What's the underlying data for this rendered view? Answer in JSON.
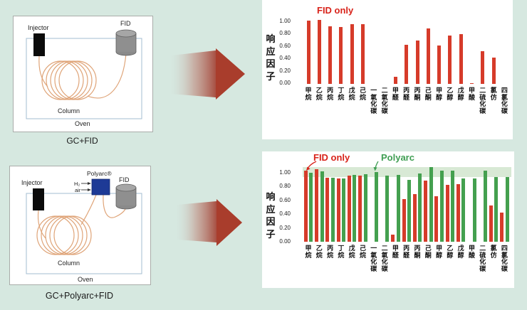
{
  "colors": {
    "background": "#d6e8e0",
    "bar_red": "#d63b2a",
    "bar_green": "#44a04f",
    "legend_red": "#d8231a",
    "legend_green": "#3f9e53",
    "flow_arrow": "#a93d2c",
    "band_green": "#d8e9d5"
  },
  "left_diagrams": [
    {
      "caption": "GC+FID",
      "labels": {
        "injector": "Injector",
        "detector": "FID",
        "column": "Column",
        "oven": "Oven"
      }
    },
    {
      "caption": "GC+Polyarc+FID",
      "labels": {
        "injector": "Injector",
        "reactor": "Polyarc®",
        "h2": "H₂",
        "air": "air",
        "detector": "FID",
        "column": "Column",
        "oven": "Oven"
      }
    }
  ],
  "chart_data": [
    {
      "type": "bar",
      "title": "FID only",
      "ylabel": "响应因子",
      "ylim": [
        0,
        1.1
      ],
      "yticks": [
        1.0,
        0.8,
        0.6,
        0.4,
        0.2,
        0.0
      ],
      "grid": false,
      "legend_position": "top-left",
      "categories": [
        "甲烷",
        "乙烷",
        "丙烷",
        "丁烷",
        "戊烷",
        "己烷",
        "一氧化碳",
        "二氧化碳",
        "甲醛",
        "丙醛",
        "丙酮",
        "己酮",
        "甲醇",
        "乙醇",
        "戊醇",
        "甲酸",
        "二硫化碳",
        "氯仿",
        "四氯化碳"
      ],
      "series": [
        {
          "name": "FID only",
          "color": "#d63b2a",
          "values": [
            1.02,
            1.04,
            0.93,
            0.92,
            0.96,
            0.96,
            0,
            0,
            0.11,
            0.63,
            0.7,
            0.9,
            0.62,
            0.78,
            0.81,
            0.01,
            0.53,
            0.42,
            0
          ]
        }
      ]
    },
    {
      "type": "bar",
      "title": "FID only vs Polyarc",
      "ylabel": "响应因子",
      "ylim": [
        0,
        1.1
      ],
      "yticks": [
        1.0,
        0.8,
        0.6,
        0.4,
        0.2,
        0.0
      ],
      "grid": false,
      "legend_position": "top-left",
      "band": {
        "from": 0.94,
        "to": 1.08,
        "color": "#d8e9d5"
      },
      "categories": [
        "甲烷",
        "乙烷",
        "丙烷",
        "丁烷",
        "戊烷",
        "己烷",
        "一氧化碳",
        "二氧化碳",
        "甲醛",
        "丙醛",
        "丙酮",
        "己酮",
        "甲醇",
        "乙醇",
        "戊醇",
        "甲酸",
        "二硫化碳",
        "氯仿",
        "四氯化碳"
      ],
      "series": [
        {
          "name": "FID only",
          "color": "#d63b2a",
          "values": [
            1.03,
            1.05,
            0.93,
            0.92,
            0.96,
            0.96,
            0,
            0,
            0.1,
            0.62,
            0.69,
            0.89,
            0.66,
            0.82,
            0.84,
            0,
            0,
            0.53,
            0.42
          ]
        },
        {
          "name": "Polyarc",
          "color": "#44a04f",
          "values": [
            1.0,
            1.02,
            0.93,
            0.92,
            0.97,
            0.98,
            1.01,
            0.96,
            0.97,
            0.9,
            0.99,
            1.08,
            1.03,
            1.03,
            0.92,
            0.92,
            1.03,
            0.94,
            0.94
          ]
        }
      ]
    }
  ]
}
